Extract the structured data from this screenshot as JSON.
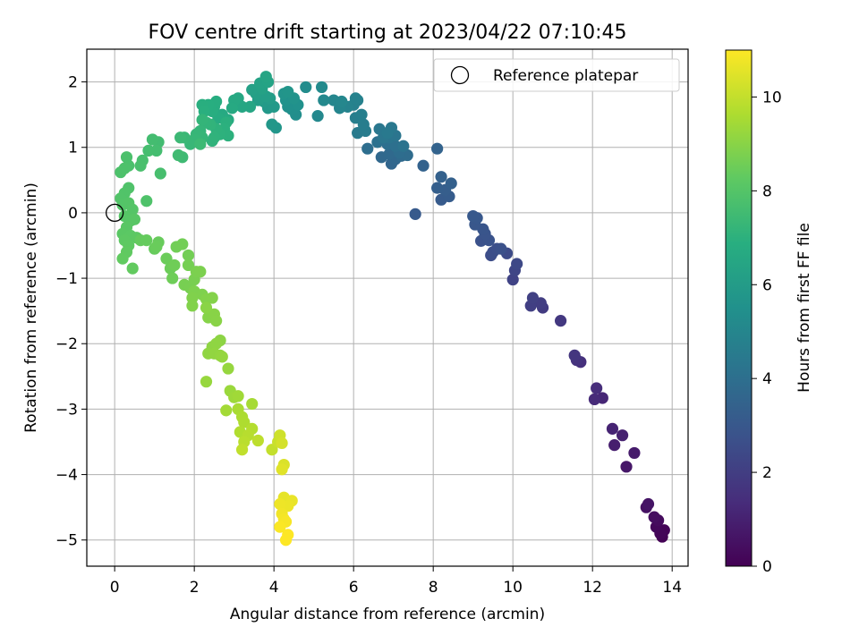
{
  "chart_data": {
    "type": "scatter",
    "title": "FOV centre drift starting at 2023/04/22 07:10:45",
    "xlabel": "Angular distance from reference (arcmin)",
    "ylabel": "Rotation from reference (arcmin)",
    "xlim": [
      -0.7,
      14.4
    ],
    "ylim": [
      -5.4,
      2.5
    ],
    "xticks": [
      0,
      2,
      4,
      6,
      8,
      10,
      12,
      14
    ],
    "yticks": [
      -5,
      -4,
      -3,
      -2,
      -1,
      0,
      1,
      2
    ],
    "x_tick_labels": [
      "0",
      "2",
      "4",
      "6",
      "8",
      "10",
      "12",
      "14"
    ],
    "y_tick_labels": [
      "−5",
      "−4",
      "−3",
      "−2",
      "−1",
      "0",
      "1",
      "2"
    ],
    "grid": true,
    "legend_position": "upper right",
    "legend": {
      "label": "Reference platepar",
      "marker": "open-circle"
    },
    "reference_point": {
      "x": 0,
      "y": 0
    },
    "colorbar": {
      "label": "Hours from first FF file",
      "colormap": "viridis",
      "range": [
        0,
        11
      ],
      "ticks": [
        0,
        2,
        4,
        6,
        8,
        10
      ],
      "tick_labels": [
        "0",
        "2",
        "4",
        "6",
        "8",
        "10"
      ]
    },
    "series": [
      {
        "points": [
          [
            13.75,
            -4.95,
            0.05
          ],
          [
            13.8,
            -4.85,
            0.1
          ],
          [
            13.7,
            -4.9,
            0.15
          ],
          [
            13.6,
            -4.8,
            0.2
          ],
          [
            13.65,
            -4.7,
            0.3
          ],
          [
            13.55,
            -4.65,
            0.4
          ],
          [
            13.35,
            -4.5,
            0.5
          ],
          [
            13.4,
            -4.45,
            0.6
          ],
          [
            12.85,
            -3.88,
            0.7
          ],
          [
            13.05,
            -3.67,
            0.8
          ],
          [
            12.55,
            -3.55,
            0.9
          ],
          [
            12.75,
            -3.4,
            1.0
          ],
          [
            12.5,
            -3.3,
            1.1
          ],
          [
            12.25,
            -2.83,
            1.2
          ],
          [
            12.05,
            -2.85,
            1.3
          ],
          [
            12.1,
            -2.68,
            1.4
          ],
          [
            11.7,
            -2.28,
            1.5
          ],
          [
            11.6,
            -2.25,
            1.6
          ],
          [
            11.55,
            -2.18,
            1.7
          ],
          [
            11.2,
            -1.65,
            1.8
          ],
          [
            10.75,
            -1.45,
            1.9
          ],
          [
            10.7,
            -1.38,
            2.0
          ],
          [
            10.45,
            -1.42,
            2.05
          ],
          [
            10.5,
            -1.3,
            2.1
          ],
          [
            10.0,
            -1.02,
            2.2
          ],
          [
            10.05,
            -0.88,
            2.3
          ],
          [
            10.1,
            -0.78,
            2.4
          ],
          [
            9.85,
            -0.62,
            2.5
          ],
          [
            9.45,
            -0.65,
            2.55
          ],
          [
            9.5,
            -0.6,
            2.6
          ],
          [
            9.6,
            -0.55,
            2.65
          ],
          [
            9.7,
            -0.55,
            2.7
          ],
          [
            9.2,
            -0.43,
            2.75
          ],
          [
            9.4,
            -0.42,
            2.8
          ],
          [
            9.3,
            -0.32,
            2.85
          ],
          [
            9.25,
            -0.25,
            2.9
          ],
          [
            9.05,
            -0.18,
            2.95
          ],
          [
            9.1,
            -0.08,
            3.0
          ],
          [
            9.0,
            -0.05,
            3.05
          ],
          [
            7.55,
            -0.02,
            3.1
          ],
          [
            8.2,
            0.2,
            3.15
          ],
          [
            8.4,
            0.25,
            3.2
          ],
          [
            8.3,
            0.35,
            3.25
          ],
          [
            8.1,
            0.38,
            3.3
          ],
          [
            8.45,
            0.45,
            3.35
          ],
          [
            8.2,
            0.55,
            3.4
          ],
          [
            7.75,
            0.72,
            3.45
          ],
          [
            8.1,
            0.98,
            3.5
          ],
          [
            6.95,
            0.75,
            3.6
          ],
          [
            7.05,
            0.82,
            3.65
          ],
          [
            6.7,
            0.85,
            3.7
          ],
          [
            6.9,
            0.9,
            3.75
          ],
          [
            7.2,
            0.87,
            3.8
          ],
          [
            7.35,
            0.88,
            3.85
          ],
          [
            7.15,
            0.92,
            3.9
          ],
          [
            6.35,
            0.98,
            3.95
          ],
          [
            6.85,
            1.05,
            4.0
          ],
          [
            7.05,
            1.02,
            4.05
          ],
          [
            6.6,
            1.08,
            4.1
          ],
          [
            7.25,
            1.02,
            4.15
          ],
          [
            6.9,
            1.15,
            4.2
          ],
          [
            7.05,
            1.18,
            4.25
          ],
          [
            6.75,
            1.15,
            4.3
          ],
          [
            6.65,
            1.28,
            4.35
          ],
          [
            6.95,
            1.3,
            4.4
          ],
          [
            6.85,
            1.22,
            4.45
          ],
          [
            6.1,
            1.22,
            4.5
          ],
          [
            6.3,
            1.25,
            4.55
          ],
          [
            6.25,
            1.35,
            4.6
          ],
          [
            6.05,
            1.45,
            4.65
          ],
          [
            6.2,
            1.5,
            4.7
          ],
          [
            6.0,
            1.65,
            4.75
          ],
          [
            6.1,
            1.72,
            4.8
          ],
          [
            6.05,
            1.75,
            4.85
          ],
          [
            5.85,
            1.62,
            4.9
          ],
          [
            5.65,
            1.6,
            4.95
          ],
          [
            5.5,
            1.72,
            5.0
          ],
          [
            5.7,
            1.7,
            5.05
          ],
          [
            5.1,
            1.48,
            5.1
          ],
          [
            5.25,
            1.72,
            5.15
          ],
          [
            5.2,
            1.92,
            5.2
          ],
          [
            4.8,
            1.92,
            5.3
          ],
          [
            4.55,
            1.5,
            5.35
          ],
          [
            4.45,
            1.58,
            5.4
          ],
          [
            4.35,
            1.62,
            5.45
          ],
          [
            4.6,
            1.65,
            5.5
          ],
          [
            4.3,
            1.72,
            5.55
          ],
          [
            4.5,
            1.75,
            5.6
          ],
          [
            4.25,
            1.82,
            5.65
          ],
          [
            4.35,
            1.85,
            5.7
          ],
          [
            4.05,
            1.3,
            5.75
          ],
          [
            3.95,
            1.35,
            5.8
          ],
          [
            3.85,
            1.6,
            5.85
          ],
          [
            4.0,
            1.62,
            5.9
          ],
          [
            3.75,
            1.7,
            5.95
          ],
          [
            3.9,
            1.75,
            6.0
          ],
          [
            3.6,
            1.72,
            6.05
          ],
          [
            3.8,
            1.78,
            6.1
          ],
          [
            3.55,
            1.82,
            6.15
          ],
          [
            3.45,
            1.88,
            6.2
          ],
          [
            3.7,
            1.9,
            6.25
          ],
          [
            3.65,
            1.98,
            6.3
          ],
          [
            3.85,
            2.0,
            6.35
          ],
          [
            3.8,
            2.08,
            6.4
          ],
          [
            3.4,
            1.62,
            6.45
          ],
          [
            3.2,
            1.62,
            6.5
          ],
          [
            3.1,
            1.75,
            6.55
          ],
          [
            3.0,
            1.72,
            6.6
          ],
          [
            2.95,
            1.6,
            6.62
          ],
          [
            2.7,
            1.5,
            6.65
          ],
          [
            2.85,
            1.42,
            6.7
          ],
          [
            2.6,
            1.45,
            6.75
          ],
          [
            2.5,
            1.62,
            6.8
          ],
          [
            2.45,
            1.55,
            6.82
          ],
          [
            2.55,
            1.7,
            6.85
          ],
          [
            2.35,
            1.65,
            6.88
          ],
          [
            2.2,
            1.65,
            6.9
          ],
          [
            2.25,
            1.55,
            6.92
          ],
          [
            2.8,
            1.38,
            6.95
          ],
          [
            2.75,
            1.28,
            6.98
          ],
          [
            2.85,
            1.18,
            7.0
          ],
          [
            2.65,
            1.2,
            7.02
          ],
          [
            2.55,
            1.28,
            7.05
          ],
          [
            2.5,
            1.15,
            7.08
          ],
          [
            2.45,
            1.1,
            7.1
          ],
          [
            2.4,
            1.35,
            7.12
          ],
          [
            2.3,
            1.38,
            7.15
          ],
          [
            2.2,
            1.42,
            7.18
          ],
          [
            2.15,
            1.25,
            7.2
          ],
          [
            2.2,
            1.15,
            7.22
          ],
          [
            2.05,
            1.2,
            7.25
          ],
          [
            2.0,
            1.12,
            7.28
          ],
          [
            1.9,
            1.05,
            7.3
          ],
          [
            1.75,
            1.15,
            7.35
          ],
          [
            1.65,
            1.15,
            7.4
          ],
          [
            2.15,
            1.05,
            7.42
          ],
          [
            1.7,
            0.85,
            7.45
          ],
          [
            1.6,
            0.88,
            7.5
          ],
          [
            1.1,
            1.08,
            7.55
          ],
          [
            0.95,
            1.12,
            7.6
          ],
          [
            1.05,
            0.95,
            7.62
          ],
          [
            0.85,
            0.95,
            7.65
          ],
          [
            1.15,
            0.6,
            7.7
          ],
          [
            0.7,
            0.8,
            7.72
          ],
          [
            0.65,
            0.72,
            7.75
          ],
          [
            0.3,
            0.85,
            7.78
          ],
          [
            0.35,
            0.72,
            7.8
          ],
          [
            0.15,
            0.62,
            7.82
          ],
          [
            0.25,
            0.68,
            7.85
          ],
          [
            0.8,
            0.18,
            7.88
          ],
          [
            0.35,
            0.38,
            7.9
          ],
          [
            0.25,
            0.3,
            7.92
          ],
          [
            0.15,
            0.22,
            7.95
          ],
          [
            0.2,
            0.12,
            7.98
          ],
          [
            0.35,
            0.15,
            8.0
          ],
          [
            0.45,
            0.05,
            8.02
          ],
          [
            0.25,
            -0.05,
            8.05
          ],
          [
            0.4,
            -0.12,
            8.08
          ],
          [
            0.5,
            -0.1,
            8.1
          ],
          [
            0.3,
            -0.22,
            8.12
          ],
          [
            0.2,
            -0.32,
            8.15
          ],
          [
            0.4,
            -0.35,
            8.18
          ],
          [
            0.55,
            -0.38,
            8.2
          ],
          [
            0.25,
            -0.42,
            8.22
          ],
          [
            0.35,
            -0.5,
            8.25
          ],
          [
            0.3,
            -0.6,
            8.28
          ],
          [
            0.2,
            -0.7,
            8.3
          ],
          [
            0.45,
            -0.85,
            8.32
          ],
          [
            0.65,
            -0.42,
            8.35
          ],
          [
            0.8,
            -0.42,
            8.38
          ],
          [
            1.0,
            -0.55,
            8.4
          ],
          [
            1.1,
            -0.45,
            8.42
          ],
          [
            1.05,
            -0.52,
            8.45
          ],
          [
            1.3,
            -0.7,
            8.48
          ],
          [
            1.4,
            -0.85,
            8.5
          ],
          [
            1.45,
            -1.0,
            8.52
          ],
          [
            1.5,
            -0.8,
            8.55
          ],
          [
            1.55,
            -0.52,
            8.58
          ],
          [
            1.7,
            -0.48,
            8.6
          ],
          [
            1.85,
            -0.65,
            8.62
          ],
          [
            1.85,
            -0.8,
            8.65
          ],
          [
            1.75,
            -1.1,
            8.68
          ],
          [
            1.9,
            -1.15,
            8.7
          ],
          [
            2.0,
            -1.02,
            8.72
          ],
          [
            2.05,
            -0.9,
            8.75
          ],
          [
            2.15,
            -0.9,
            8.78
          ],
          [
            2.0,
            -1.2,
            8.8
          ],
          [
            2.2,
            -1.25,
            8.82
          ],
          [
            1.95,
            -1.3,
            8.85
          ],
          [
            1.95,
            -1.42,
            8.88
          ],
          [
            2.3,
            -1.32,
            8.9
          ],
          [
            2.45,
            -1.3,
            8.92
          ],
          [
            2.35,
            -1.6,
            8.95
          ],
          [
            2.5,
            -1.55,
            8.98
          ],
          [
            2.55,
            -1.65,
            9.0
          ],
          [
            2.3,
            -1.45,
            9.02
          ],
          [
            2.65,
            -1.95,
            9.05
          ],
          [
            2.45,
            -2.05,
            9.08
          ],
          [
            2.55,
            -2.0,
            9.1
          ],
          [
            2.35,
            -2.15,
            9.12
          ],
          [
            2.5,
            -2.15,
            9.15
          ],
          [
            2.65,
            -2.18,
            9.18
          ],
          [
            2.7,
            -2.2,
            9.2
          ],
          [
            2.85,
            -2.38,
            9.22
          ],
          [
            2.3,
            -2.58,
            9.25
          ],
          [
            2.9,
            -2.72,
            9.3
          ],
          [
            3.0,
            -2.82,
            9.35
          ],
          [
            3.1,
            -2.8,
            9.4
          ],
          [
            2.8,
            -3.02,
            9.45
          ],
          [
            3.45,
            -2.92,
            9.5
          ],
          [
            3.1,
            -3.0,
            9.55
          ],
          [
            3.2,
            -3.12,
            9.6
          ],
          [
            3.25,
            -3.2,
            9.65
          ],
          [
            3.15,
            -3.35,
            9.7
          ],
          [
            3.45,
            -3.3,
            9.75
          ],
          [
            3.35,
            -3.4,
            9.8
          ],
          [
            3.25,
            -3.5,
            9.85
          ],
          [
            3.6,
            -3.48,
            9.9
          ],
          [
            3.2,
            -3.62,
            9.95
          ],
          [
            3.95,
            -3.62,
            10.0
          ],
          [
            4.1,
            -3.5,
            10.1
          ],
          [
            4.15,
            -3.4,
            10.2
          ],
          [
            4.2,
            -3.52,
            10.3
          ],
          [
            4.25,
            -3.85,
            10.4
          ],
          [
            4.2,
            -3.92,
            10.5
          ],
          [
            4.25,
            -4.35,
            10.6
          ],
          [
            4.45,
            -4.4,
            10.65
          ],
          [
            4.35,
            -4.48,
            10.7
          ],
          [
            4.15,
            -4.45,
            10.75
          ],
          [
            4.2,
            -4.6,
            10.8
          ],
          [
            4.25,
            -4.68,
            10.85
          ],
          [
            4.3,
            -4.72,
            10.9
          ],
          [
            4.15,
            -4.8,
            10.95
          ],
          [
            4.35,
            -4.92,
            11.0
          ],
          [
            4.3,
            -5.0,
            11.0
          ]
        ]
      }
    ]
  }
}
